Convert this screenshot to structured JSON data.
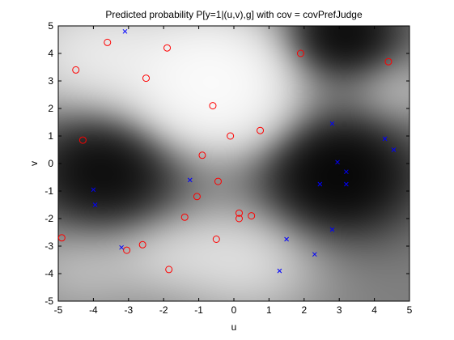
{
  "chart_data": {
    "type": "scatter",
    "title": "Predicted probability P[y=1|(u,v),g] with cov = covPrefJudge",
    "xlabel": "u",
    "ylabel": "v",
    "xlim": [
      -5,
      5
    ],
    "ylim": [
      -5,
      5
    ],
    "xticks": [
      "-5",
      "-4",
      "-3",
      "-2",
      "-1",
      "0",
      "1",
      "2",
      "3",
      "4",
      "5"
    ],
    "yticks": [
      "-5",
      "-4",
      "-3",
      "-2",
      "-1",
      "0",
      "1",
      "2",
      "3",
      "4",
      "5"
    ],
    "grid": false,
    "legend": "none",
    "background": {
      "type": "heatmap",
      "colormap": "gray",
      "description_levels": "probability 0 (black) to 1 (white)"
    },
    "series": [
      {
        "marker": "circle",
        "color": "#ff0000",
        "points": [
          [
            -3.6,
            4.4
          ],
          [
            -4.5,
            3.4
          ],
          [
            -2.5,
            3.1
          ],
          [
            -1.9,
            4.2
          ],
          [
            -0.6,
            2.1
          ],
          [
            1.9,
            4.0
          ],
          [
            4.4,
            3.7
          ],
          [
            -4.3,
            0.85
          ],
          [
            -0.9,
            0.3
          ],
          [
            0.75,
            1.2
          ],
          [
            -0.1,
            1.0
          ],
          [
            -0.45,
            -0.65
          ],
          [
            -1.05,
            -1.2
          ],
          [
            0.15,
            -1.8
          ],
          [
            -1.4,
            -1.95
          ],
          [
            0.5,
            -1.9
          ],
          [
            0.15,
            -2.0
          ],
          [
            -4.9,
            -2.7
          ],
          [
            -2.6,
            -2.95
          ],
          [
            -3.05,
            -3.15
          ],
          [
            -0.5,
            -2.75
          ],
          [
            -1.85,
            -3.85
          ]
        ]
      },
      {
        "marker": "x",
        "color": "#0000ff",
        "points": [
          [
            -3.1,
            4.8
          ],
          [
            -4.0,
            -0.95
          ],
          [
            -3.95,
            -1.5
          ],
          [
            -1.25,
            -0.6
          ],
          [
            -3.2,
            -3.05
          ],
          [
            1.5,
            -2.75
          ],
          [
            1.3,
            -3.9
          ],
          [
            2.3,
            -3.3
          ],
          [
            2.45,
            -0.75
          ],
          [
            2.8,
            1.45
          ],
          [
            2.95,
            0.05
          ],
          [
            3.2,
            -0.3
          ],
          [
            3.2,
            -0.75
          ],
          [
            2.8,
            -2.4
          ],
          [
            4.3,
            0.9
          ],
          [
            4.55,
            0.5
          ]
        ]
      }
    ]
  }
}
